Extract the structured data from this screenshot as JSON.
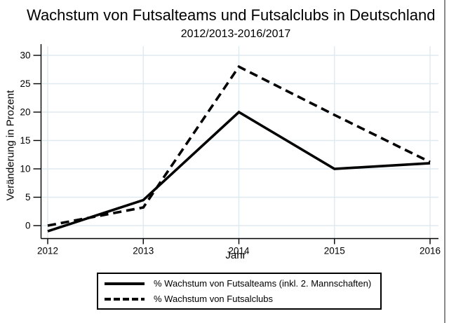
{
  "chart_data": {
    "type": "line",
    "title": "Wachstum von Futsalteams und Futsalclubs in Deutschland",
    "subtitle": "2012/2013-2016/2017",
    "xlabel": "Jahr",
    "ylabel": "Veränderung in Prozent",
    "x": [
      2012,
      2013,
      2014,
      2015,
      2016
    ],
    "y_ticks": [
      0,
      5,
      10,
      15,
      20,
      25,
      30
    ],
    "ylim": [
      -2.5,
      31
    ],
    "grid": true,
    "legend_position": "bottom",
    "series": [
      {
        "name": "% Wachstum von Futsalteams (inkl. 2. Mannschaften)",
        "style": "solid",
        "values": [
          -1,
          4.5,
          20,
          10,
          11
        ]
      },
      {
        "name": "% Wachstum von Futsalclubs",
        "style": "dashed",
        "values": [
          0,
          3.2,
          28,
          19.5,
          11.2
        ]
      }
    ],
    "colors": {
      "line": "#000000",
      "grid": "#dfe9f0",
      "axis": "#000000",
      "background": "#ffffff",
      "window_border": "#8a8a8a"
    }
  }
}
